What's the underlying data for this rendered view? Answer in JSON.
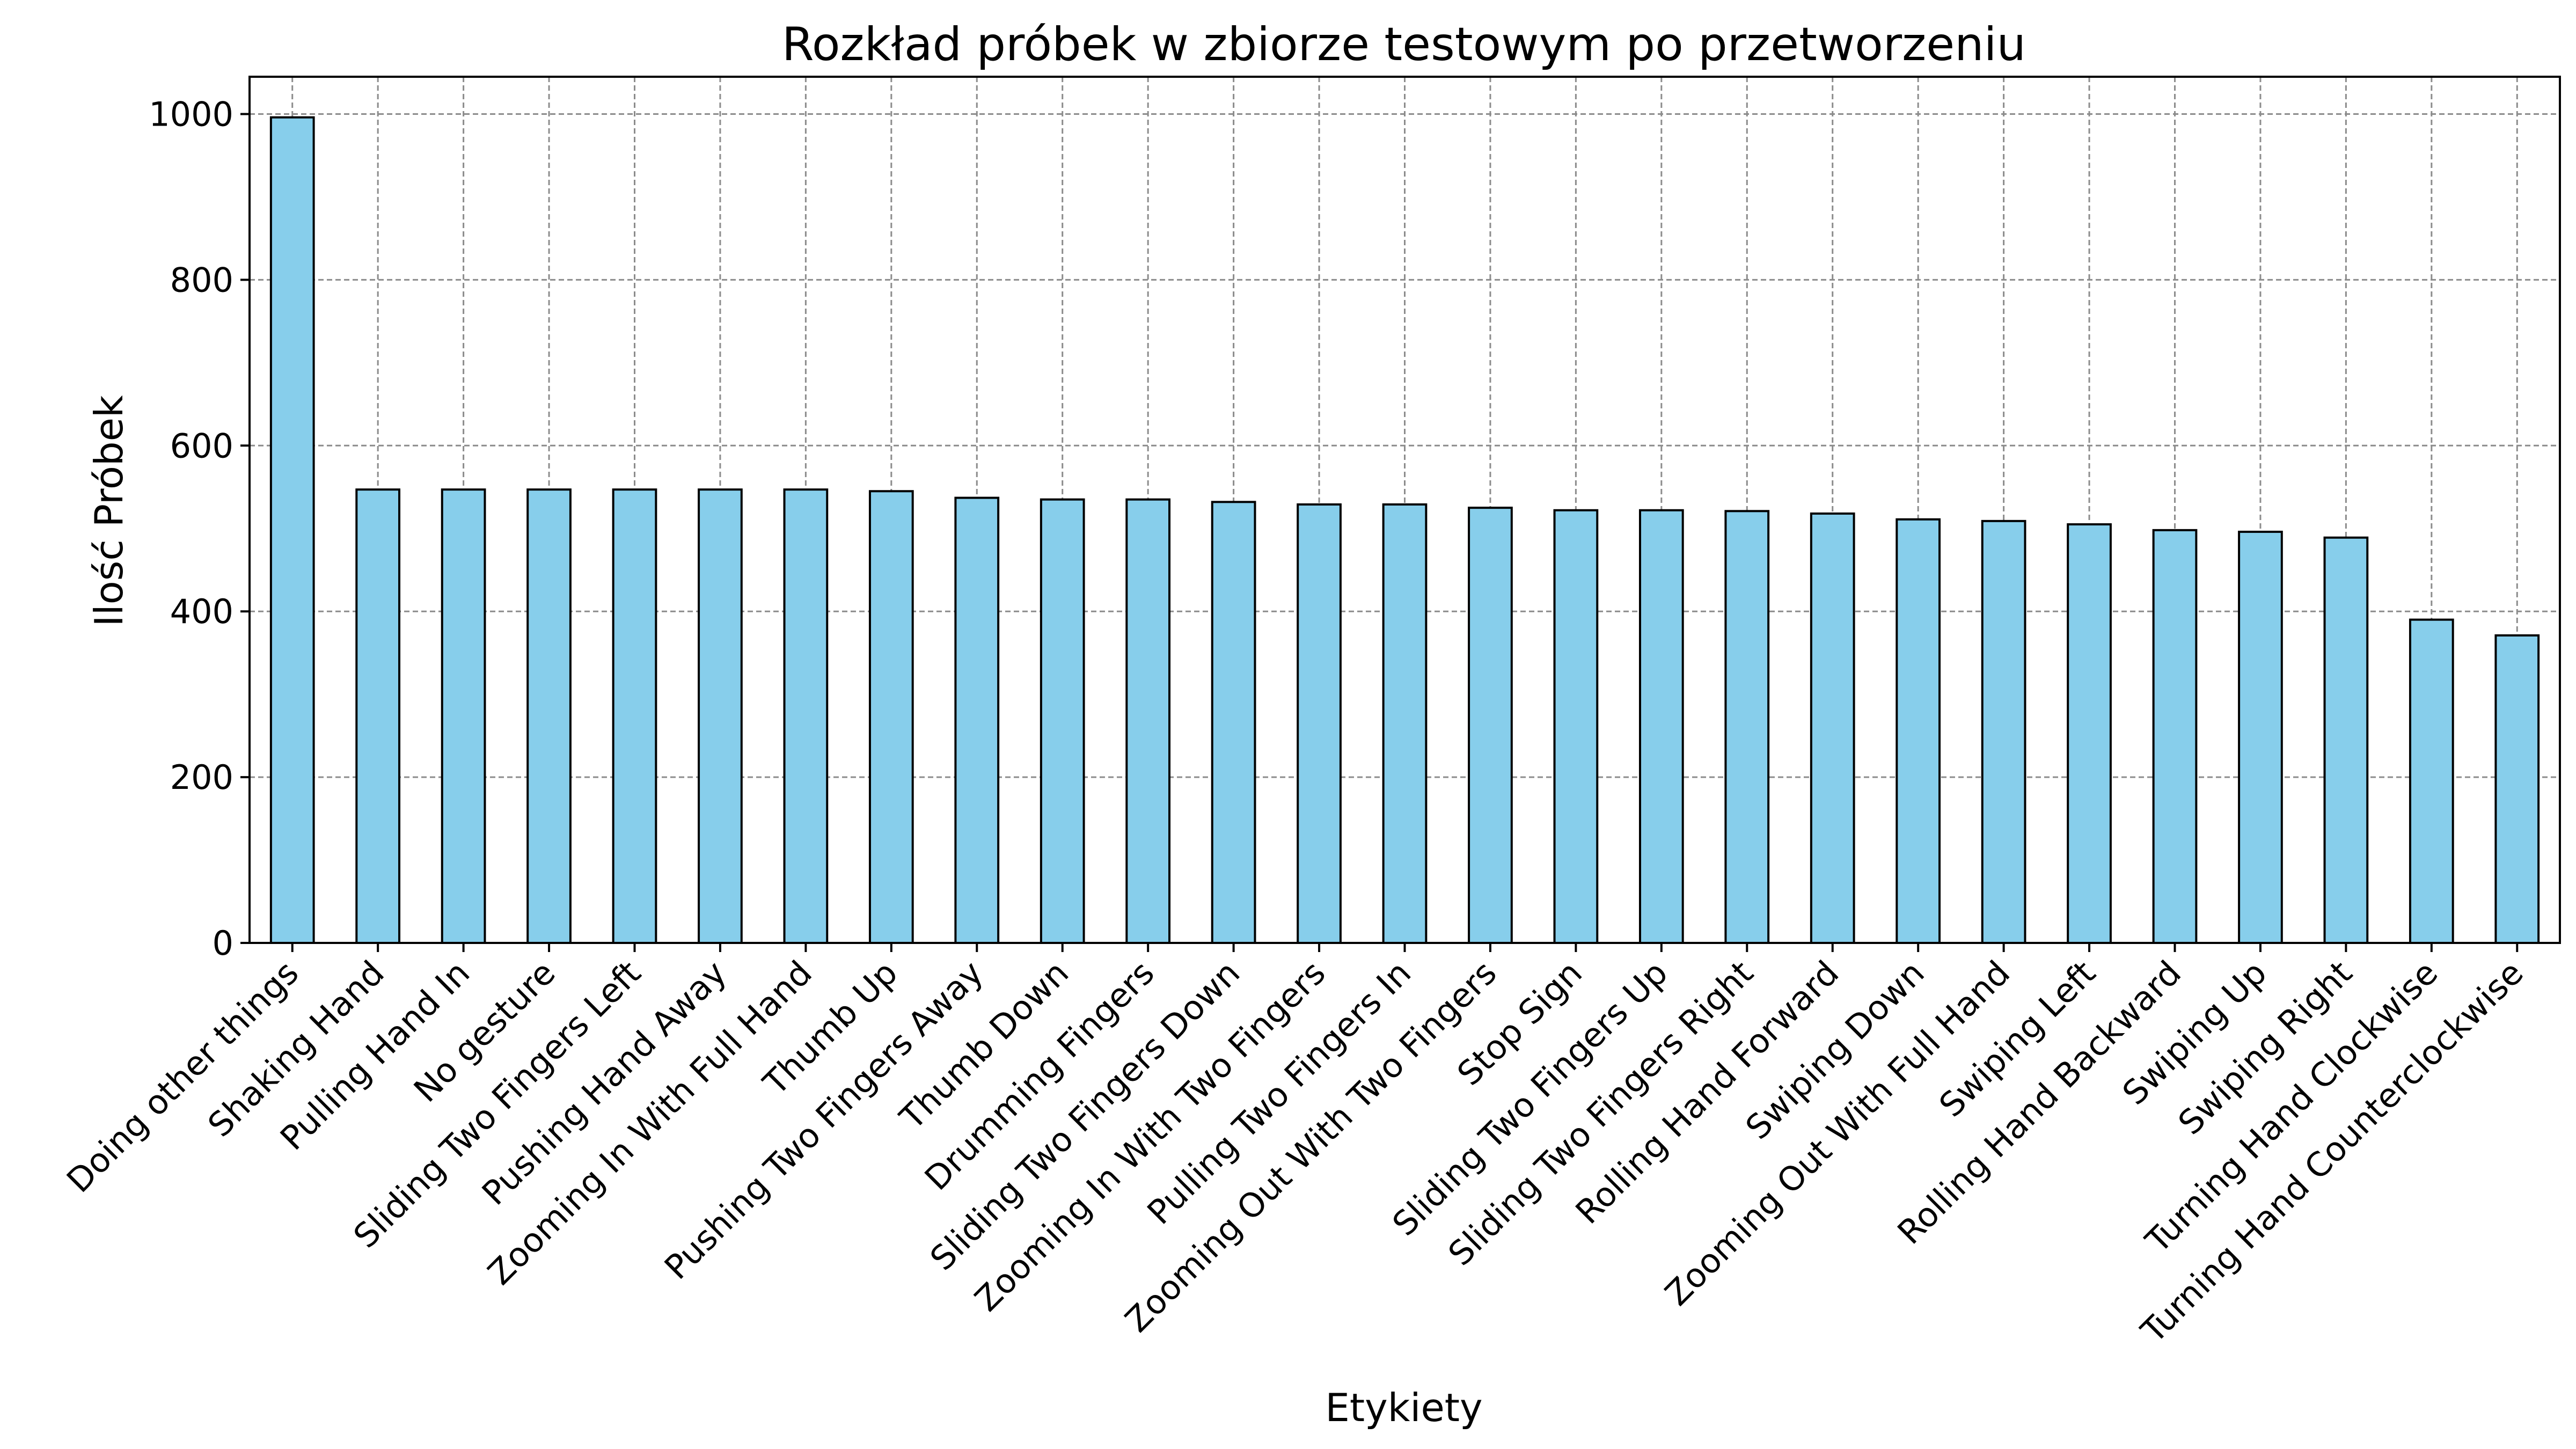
{
  "chart_data": {
    "type": "bar",
    "title": "Rozkład próbek w zbiorze testowym po przetworzeniu",
    "xlabel": "Etykiety",
    "ylabel": "Ilość Próbek",
    "ylim": [
      0,
      1045
    ],
    "yticks": [
      0,
      200,
      400,
      600,
      800,
      1000
    ],
    "grid": true,
    "legend": "none",
    "bar_color": "#87CEEB",
    "edge_color": "#000000",
    "categories": [
      "Doing other things",
      "Shaking Hand",
      "Pulling Hand In",
      "No gesture",
      "Sliding Two Fingers Left",
      "Pushing Hand Away",
      "Zooming In With Full Hand",
      "Thumb Up",
      "Pushing Two Fingers Away",
      "Thumb Down",
      "Drumming Fingers",
      "Sliding Two Fingers Down",
      "Zooming In With Two Fingers",
      "Pulling Two Fingers In",
      "Zooming Out With Two Fingers",
      "Stop Sign",
      "Sliding Two Fingers Up",
      "Sliding Two Fingers Right",
      "Rolling Hand Forward",
      "Swiping Down",
      "Zooming Out With Full Hand",
      "Swiping Left",
      "Rolling Hand Backward",
      "Swiping Up",
      "Swiping Right",
      "Turning Hand Clockwise",
      "Turning Hand Counterclockwise"
    ],
    "values": [
      996,
      547,
      547,
      547,
      547,
      547,
      547,
      545,
      537,
      535,
      535,
      532,
      529,
      529,
      525,
      522,
      522,
      521,
      518,
      511,
      509,
      505,
      498,
      496,
      489,
      390,
      371
    ]
  }
}
